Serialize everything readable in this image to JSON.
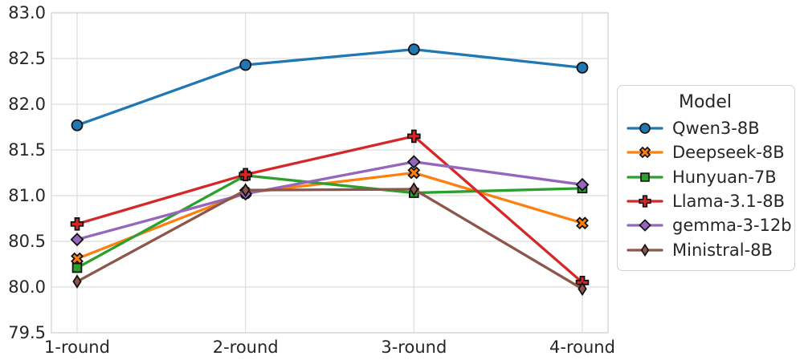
{
  "chart_data": {
    "type": "line",
    "title": "",
    "xlabel": "",
    "ylabel": "",
    "categories": [
      "1-round",
      "2-round",
      "3-round",
      "4-round"
    ],
    "series": [
      {
        "name": "Qwen3-8B",
        "color": "#1f77b4",
        "marker": "circle",
        "values": [
          81.77,
          82.43,
          82.6,
          82.4
        ]
      },
      {
        "name": "Deepseek-8B",
        "color": "#ff7f0e",
        "marker": "x",
        "values": [
          80.31,
          81.03,
          81.25,
          80.7
        ]
      },
      {
        "name": "Hunyuan-7B",
        "color": "#2ca02c",
        "marker": "square",
        "values": [
          80.21,
          81.22,
          81.03,
          81.08
        ]
      },
      {
        "name": "Llama-3.1-8B",
        "color": "#d62728",
        "marker": "plus",
        "values": [
          80.69,
          81.23,
          81.65,
          80.05
        ]
      },
      {
        "name": "gemma-3-12b",
        "color": "#9467bd",
        "marker": "diamond",
        "values": [
          80.52,
          81.02,
          81.37,
          81.12
        ]
      },
      {
        "name": "Ministral-8B",
        "color": "#8c564b",
        "marker": "thin-diamond",
        "values": [
          80.06,
          81.06,
          81.07,
          79.98
        ]
      }
    ],
    "ylim": [
      79.5,
      83.0
    ],
    "yticks": [
      "79.5",
      "80.0",
      "80.5",
      "81.0",
      "81.5",
      "82.0",
      "82.5",
      "83.0"
    ],
    "grid": true,
    "legend": {
      "title": "Model",
      "position": "right-outside"
    },
    "colors": {
      "grid": "#dcdcdc",
      "spine": "#d6d6d6",
      "text": "#262626",
      "marker_edge": "#111111",
      "background": "#ffffff"
    }
  }
}
